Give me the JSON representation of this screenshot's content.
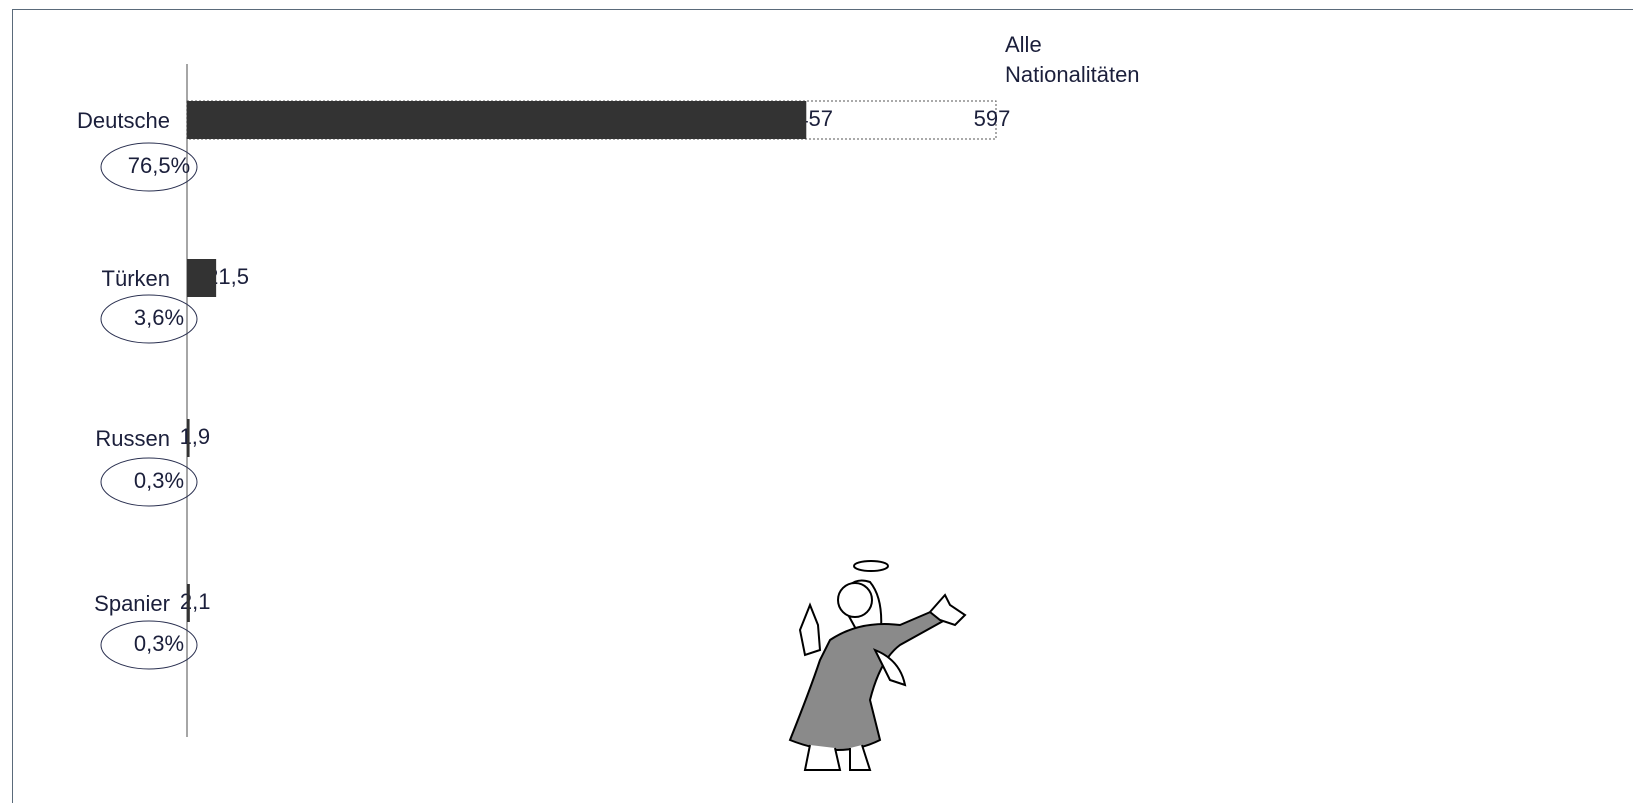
{
  "chart_data": {
    "type": "bar",
    "categories": [
      "Deutsche",
      "Türken",
      "Russen",
      "Spanier"
    ],
    "values": [
      457,
      21.5,
      1.9,
      2.1
    ],
    "value_labels": [
      "457",
      "21,5",
      "1,9",
      "2,1"
    ],
    "shares": [
      76.5,
      3.6,
      0.3,
      0.3
    ],
    "share_labels": [
      "76,5%",
      "3,6%",
      "0,3%",
      "0,3%"
    ],
    "total": {
      "name": "Alle Nationalitäten",
      "value": 597,
      "value_label": "597"
    },
    "color": "#333333"
  }
}
